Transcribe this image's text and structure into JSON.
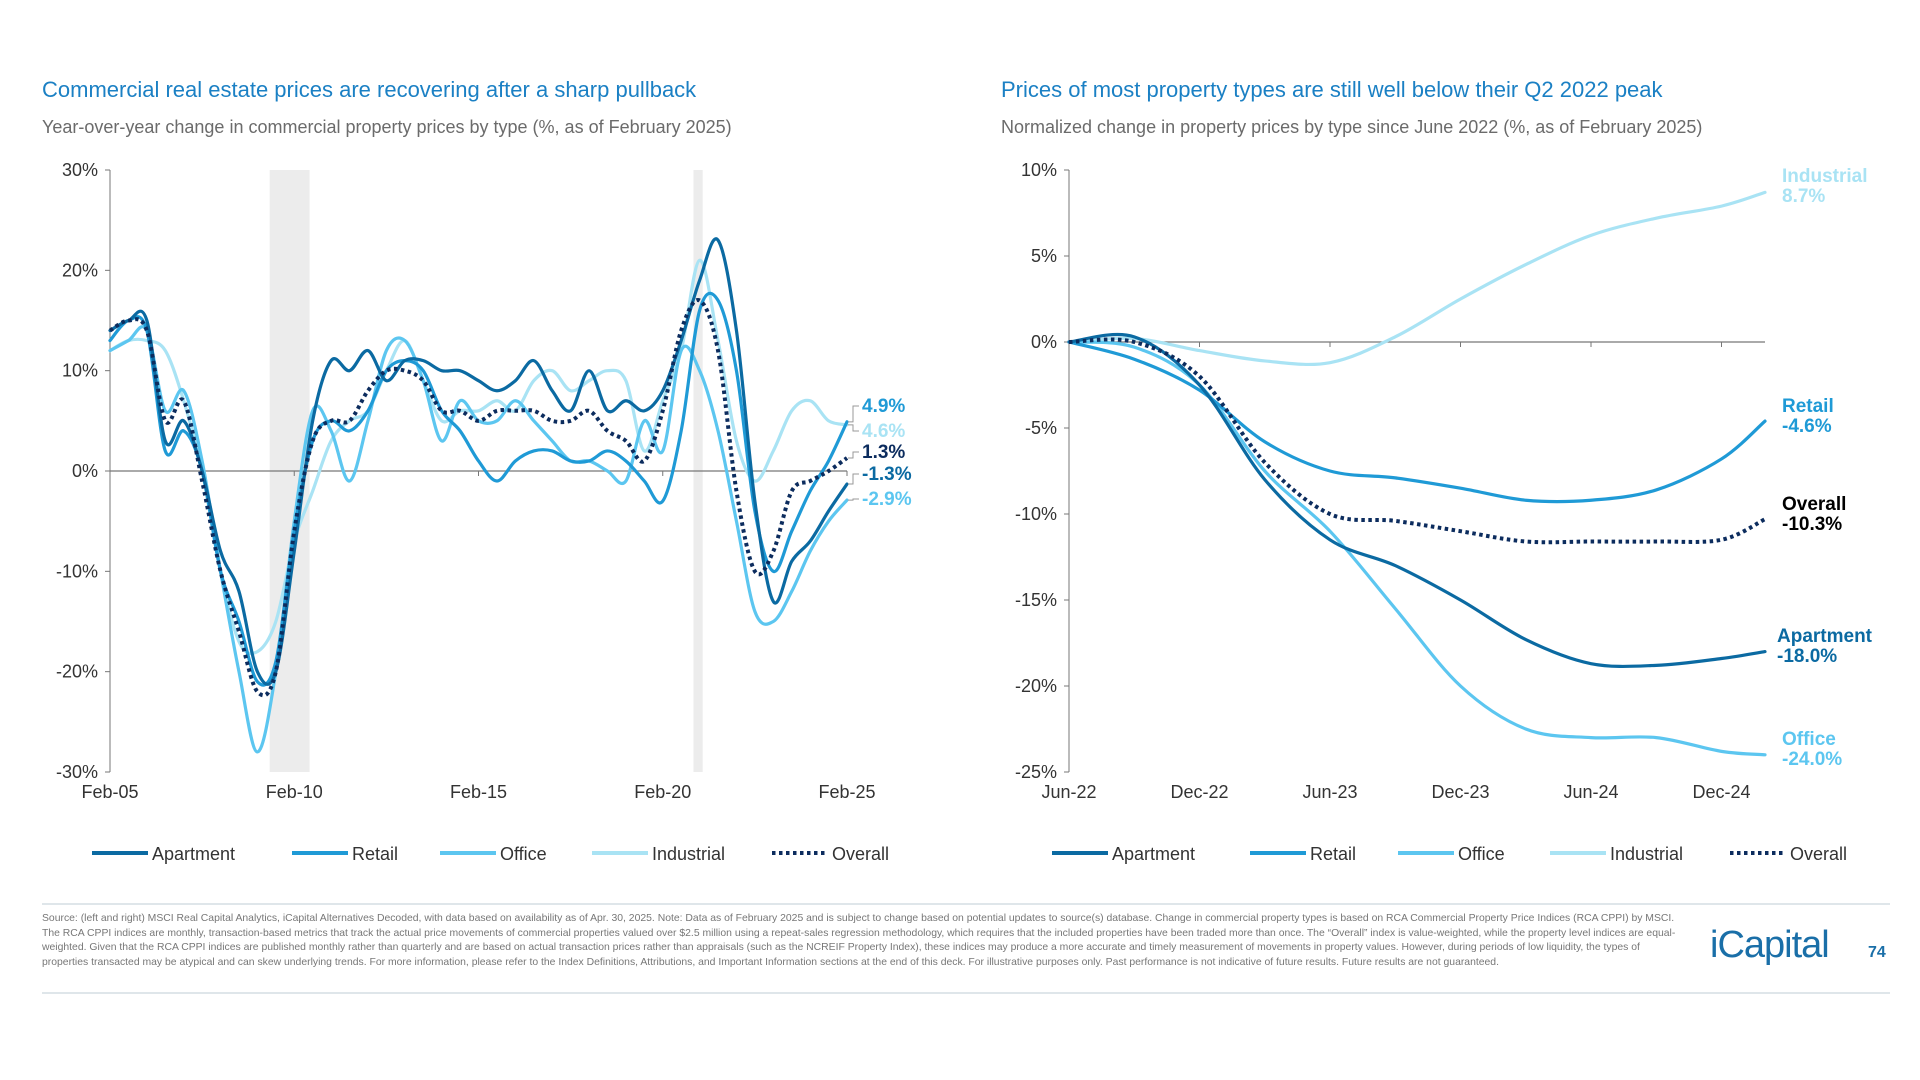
{
  "left": {
    "title": "Commercial real estate prices are recovering after a sharp pullback",
    "subtitle": "Year-over-year change in commercial property prices by type (%, as of February 2025)"
  },
  "right": {
    "title": "Prices of most property types are still well below their Q2 2022 peak",
    "subtitle": "Normalized change in property prices by type since June 2022 (%, as of February 2025)"
  },
  "colors": {
    "Apartment": "#0b6aa2",
    "Retail": "#1f9ad6",
    "Office": "#5cc6f0",
    "Industrial": "#a9e3f4",
    "Overall": "#0c2c5e"
  },
  "chart_data": [
    {
      "type": "line",
      "title": "Commercial real estate prices are recovering after a sharp pullback",
      "xlabel": "",
      "ylabel": "",
      "ylim": [
        -30,
        30
      ],
      "yticks": [
        "30%",
        "20%",
        "10%",
        "0%",
        "-10%",
        "-20%",
        "-30%"
      ],
      "yticks_values": [
        30,
        20,
        10,
        0,
        -10,
        -20,
        -30
      ],
      "xticks": [
        "Feb-05",
        "Feb-10",
        "Feb-15",
        "Feb-20",
        "Feb-25"
      ],
      "xticks_dates": [
        "2005-02",
        "2010-02",
        "2015-02",
        "2020-02",
        "2025-02"
      ],
      "shaded_periods": [
        [
          "2009-06",
          "2010-07"
        ],
        [
          "2020-12",
          "2021-03"
        ]
      ],
      "legend": "bottom",
      "x_start": "2005-02",
      "x_step_months": 6,
      "series": [
        {
          "name": "Apartment",
          "style": "solid",
          "end_label": "-1.3%",
          "values": [
            14,
            15,
            15,
            3,
            5,
            0,
            -8,
            -12,
            -20,
            -20,
            -8,
            5,
            11,
            10,
            12,
            9,
            11,
            11,
            10,
            10,
            9,
            8,
            9,
            11,
            8,
            6,
            10,
            6,
            7,
            6,
            8,
            13,
            19,
            23,
            14,
            -3,
            -13,
            -9,
            -7,
            -4,
            -1.3
          ]
        },
        {
          "name": "Retail",
          "style": "solid",
          "end_label": "4.9%",
          "values": [
            13,
            15,
            14,
            2,
            4,
            0,
            -10,
            -15,
            -21,
            -19,
            -6,
            3,
            5,
            4,
            6,
            10,
            11,
            10,
            6,
            4,
            1,
            -1,
            1,
            2,
            2,
            1,
            1,
            2,
            1,
            -1,
            -3,
            4,
            16,
            17,
            10,
            -4,
            -10,
            -6,
            -2,
            1,
            4.9
          ]
        },
        {
          "name": "Office",
          "style": "solid",
          "end_label": "-2.9%",
          "values": [
            12,
            13,
            14,
            6,
            8,
            1,
            -10,
            -20,
            -28,
            -20,
            -5,
            6,
            4,
            -1,
            5,
            12,
            13,
            9,
            3,
            7,
            5,
            5,
            7,
            5,
            3,
            1,
            1,
            0,
            -1,
            5,
            2,
            12,
            10,
            4,
            -5,
            -14,
            -15,
            -12,
            -8,
            -5,
            -2.9
          ]
        },
        {
          "name": "Industrial",
          "style": "solid",
          "end_label": "4.6%",
          "values": [
            12,
            13,
            13,
            12,
            7,
            0,
            -10,
            -17,
            -18,
            -15,
            -7,
            -2,
            3,
            5,
            6,
            10,
            13,
            9,
            5,
            6,
            6,
            7,
            6,
            9,
            10,
            8,
            9,
            10,
            9,
            2,
            7,
            12,
            21,
            13,
            3,
            -1,
            2,
            6,
            7,
            5,
            4.6
          ]
        },
        {
          "name": "Overall",
          "style": "dotted",
          "end_label": "1.3%",
          "values": [
            14,
            15,
            14,
            5,
            7,
            -1,
            -10,
            -16,
            -22,
            -20,
            -6,
            3,
            5,
            5,
            8,
            10,
            10,
            9,
            6,
            6,
            5,
            6,
            6,
            6,
            5,
            5,
            6,
            4,
            3,
            1,
            6,
            14,
            17,
            12,
            -2,
            -10,
            -8,
            -2,
            -1,
            0,
            1.3
          ]
        }
      ]
    },
    {
      "type": "line",
      "title": "Prices of most property types are still well below their Q2 2022 peak",
      "xlabel": "",
      "ylabel": "",
      "ylim": [
        -25,
        10
      ],
      "yticks": [
        "10%",
        "5%",
        "0%",
        "-5%",
        "-10%",
        "-15%",
        "-20%",
        "-25%"
      ],
      "yticks_values": [
        10,
        5,
        0,
        -5,
        -10,
        -15,
        -20,
        -25
      ],
      "xticks": [
        "Jun-22",
        "Dec-22",
        "Jun-23",
        "Dec-23",
        "Jun-24",
        "Dec-24"
      ],
      "xticks_dates": [
        "2022-06",
        "2022-12",
        "2023-06",
        "2023-12",
        "2024-06",
        "2024-12"
      ],
      "legend": "bottom",
      "x": [
        "2022-06",
        "2022-09",
        "2022-12",
        "2023-03",
        "2023-06",
        "2023-09",
        "2023-12",
        "2024-03",
        "2024-06",
        "2024-09",
        "2024-12",
        "2025-02"
      ],
      "series": [
        {
          "name": "Apartment",
          "style": "solid",
          "end_label": [
            "Apartment",
            "-18.0%"
          ],
          "values": [
            0,
            0.3,
            -2.5,
            -8,
            -11.5,
            -13,
            -15,
            -17.3,
            -18.7,
            -18.8,
            -18.4,
            -18.0
          ]
        },
        {
          "name": "Retail",
          "style": "solid",
          "end_label": [
            "Retail",
            "-4.6%"
          ],
          "values": [
            0,
            -1,
            -2.8,
            -5.8,
            -7.5,
            -7.9,
            -8.5,
            -9.2,
            -9.2,
            -8.6,
            -6.8,
            -4.6
          ]
        },
        {
          "name": "Office",
          "style": "solid",
          "end_label": [
            "Office",
            "-24.0%"
          ],
          "values": [
            0,
            -0.3,
            -2.5,
            -7.5,
            -11,
            -15.5,
            -20,
            -22.5,
            -23,
            -23,
            -23.8,
            -24.0
          ]
        },
        {
          "name": "Industrial",
          "style": "solid",
          "end_label": [
            "Industrial",
            "8.7%"
          ],
          "values": [
            0,
            0.2,
            -0.5,
            -1.1,
            -1.2,
            0.3,
            2.5,
            4.5,
            6.2,
            7.2,
            7.9,
            8.7
          ]
        },
        {
          "name": "Overall",
          "style": "dotted",
          "end_label": [
            "Overall",
            "-10.3%"
          ],
          "values": [
            0,
            0,
            -2,
            -7,
            -10,
            -10.4,
            -11,
            -11.6,
            -11.6,
            -11.6,
            -11.5,
            -10.3
          ]
        }
      ]
    }
  ],
  "legend_items": [
    "Apartment",
    "Retail",
    "Office",
    "Industrial",
    "Overall"
  ],
  "footer": {
    "source": "Source: (left and right) MSCI Real Capital Analytics, iCapital Alternatives Decoded, with data based on availability as of Apr. 30, 2025. Note: Data as of February 2025 and is subject to change based on potential updates to source(s) database. Change in commercial property types is based on RCA Commercial Property Price Indices (RCA CPPI) by MSCI. The RCA CPPI indices are monthly, transaction-based metrics that track the actual price movements of commercial properties valued over $2.5 million using a repeat-sales regression methodology, which requires that the included properties have been traded more than once. The “Overall” index is value-weighted, while the property level indices are equal-weighted. Given that the RCA CPPI indices are published monthly rather than quarterly and are based on actual transaction prices rather than appraisals (such as the NCREIF Property Index), these indices may produce a more accurate and timely measurement of movements in property values. However, during periods of low liquidity, the types of properties transacted may be atypical and can skew underlying trends. For more information, please refer to the Index Definitions, Attributions, and Important Information sections at the end of this deck. For illustrative purposes only. Past performance is not indicative of future results. Future results are not guaranteed.",
    "logo": "iCapital",
    "page_number": "74"
  }
}
